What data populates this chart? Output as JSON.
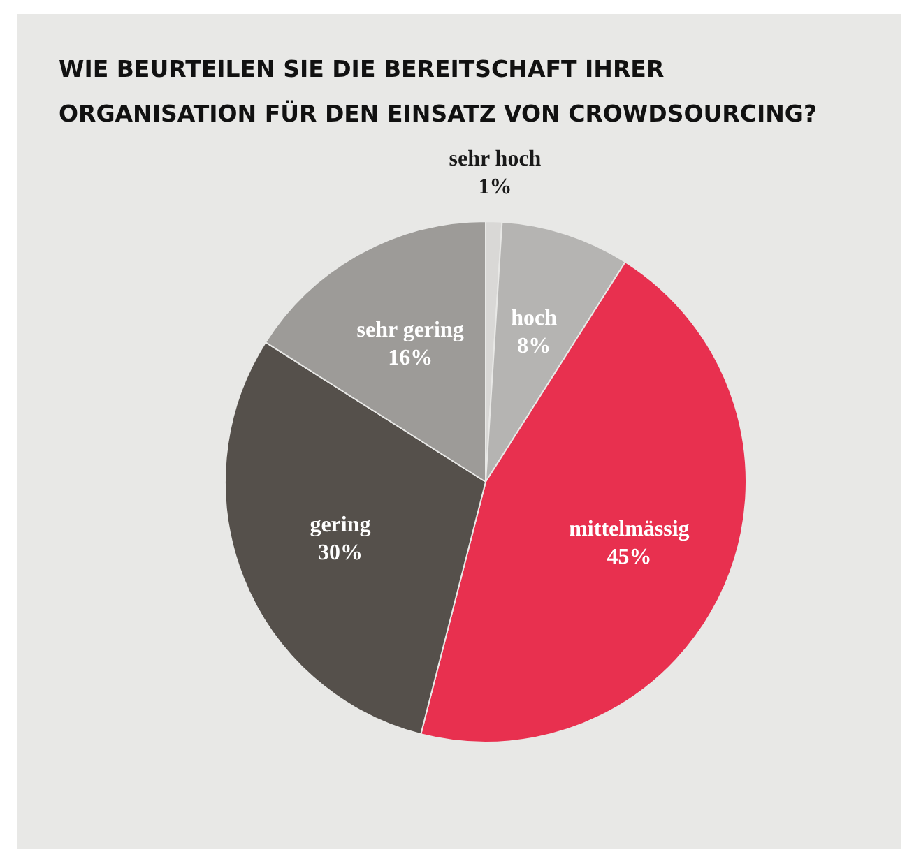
{
  "chart_data": {
    "type": "pie",
    "title": "WIE BEURTEILEN SIE DIE BEREITSCHAFT IHRER ORGANISATION FÜR DEN EINSATZ VON CROWDSOURCING?",
    "categories": [
      "sehr hoch",
      "hoch",
      "mittelmässig",
      "gering",
      "sehr gering"
    ],
    "values": [
      1,
      8,
      45,
      30,
      16
    ],
    "value_labels": [
      "1%",
      "8%",
      "45%",
      "30%",
      "16%"
    ],
    "colors": [
      "#d9d8d6",
      "#b5b4b2",
      "#e8304f",
      "#55504b",
      "#9d9b98"
    ],
    "legend": false
  }
}
